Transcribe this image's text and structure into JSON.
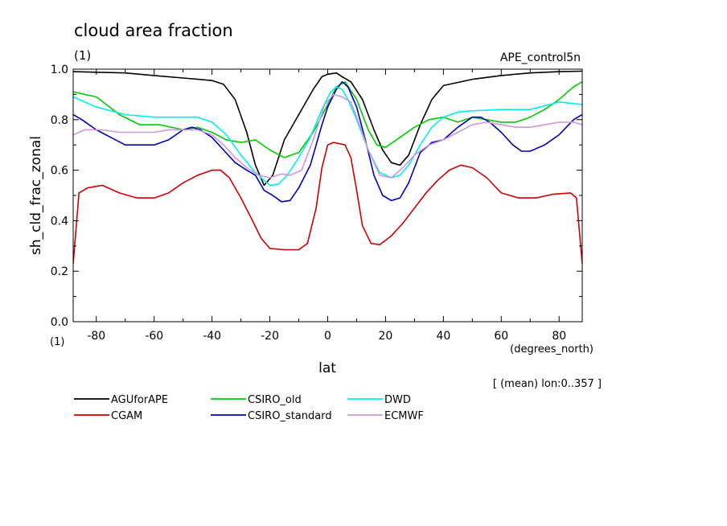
{
  "chart_data": {
    "type": "line",
    "title": "cloud area fraction",
    "subtitle": "(1)",
    "experiment": "APE_control5n",
    "xlabel": "lat",
    "xunits": "(degrees_north)",
    "ylabel": "sh_cld_frac_zonal",
    "yunits": "(1)",
    "note": "[ (mean) lon:0..357 ]",
    "xlim": [
      -88,
      88
    ],
    "ylim": [
      0,
      1
    ],
    "xticks": [
      -80,
      -60,
      -40,
      -20,
      0,
      20,
      40,
      60,
      80
    ],
    "yticks": [
      0,
      0.2,
      0.4,
      0.6,
      0.8,
      1
    ],
    "yticklabels": [
      "0.0",
      "0.2",
      "0.4",
      "0.6",
      "0.8",
      "1.0"
    ],
    "series": [
      {
        "name": "AGUforAPE",
        "color": "#000000",
        "x": [
          -88,
          -80,
          -70,
          -60,
          -50,
          -40,
          -36,
          -32,
          -28,
          -25,
          -22,
          -19,
          -15,
          -10,
          -5,
          -2,
          0,
          3,
          5,
          8,
          12,
          16,
          19,
          22,
          25,
          28,
          32,
          36,
          40,
          50,
          60,
          70,
          80,
          88
        ],
        "y": [
          0.99,
          0.988,
          0.985,
          0.975,
          0.965,
          0.955,
          0.94,
          0.88,
          0.75,
          0.62,
          0.54,
          0.58,
          0.72,
          0.82,
          0.92,
          0.97,
          0.98,
          0.985,
          0.97,
          0.95,
          0.88,
          0.76,
          0.68,
          0.63,
          0.62,
          0.66,
          0.78,
          0.88,
          0.935,
          0.96,
          0.975,
          0.985,
          0.99,
          0.992
        ]
      },
      {
        "name": "CGAM",
        "color": "#cc0000",
        "x": [
          -88,
          -86,
          -83,
          -78,
          -72,
          -66,
          -60,
          -55,
          -50,
          -45,
          -40,
          -37,
          -34,
          -30,
          -26,
          -23,
          -20,
          -15,
          -10,
          -7,
          -4,
          -2,
          0,
          2,
          4,
          6,
          8,
          10,
          12,
          15,
          18,
          22,
          26,
          30,
          34,
          38,
          42,
          46,
          50,
          55,
          60,
          66,
          72,
          78,
          84,
          86,
          88
        ],
        "y": [
          0.23,
          0.51,
          0.53,
          0.54,
          0.51,
          0.49,
          0.49,
          0.51,
          0.55,
          0.58,
          0.6,
          0.6,
          0.57,
          0.49,
          0.4,
          0.33,
          0.29,
          0.285,
          0.285,
          0.31,
          0.45,
          0.61,
          0.7,
          0.71,
          0.705,
          0.7,
          0.65,
          0.52,
          0.38,
          0.31,
          0.305,
          0.34,
          0.39,
          0.45,
          0.51,
          0.56,
          0.6,
          0.62,
          0.61,
          0.57,
          0.51,
          0.49,
          0.49,
          0.505,
          0.51,
          0.49,
          0.23
        ]
      },
      {
        "name": "CSIRO_old",
        "color": "#00cc00",
        "x": [
          -88,
          -80,
          -72,
          -65,
          -58,
          -50,
          -45,
          -40,
          -35,
          -30,
          -25,
          -20,
          -15,
          -10,
          -5,
          0,
          3,
          6,
          10,
          14,
          17,
          20,
          25,
          30,
          35,
          40,
          45,
          50,
          55,
          60,
          65,
          70,
          75,
          80,
          85,
          88
        ],
        "y": [
          0.91,
          0.89,
          0.82,
          0.78,
          0.78,
          0.76,
          0.77,
          0.75,
          0.72,
          0.71,
          0.72,
          0.68,
          0.65,
          0.67,
          0.75,
          0.86,
          0.93,
          0.95,
          0.88,
          0.76,
          0.7,
          0.69,
          0.73,
          0.77,
          0.8,
          0.81,
          0.79,
          0.81,
          0.8,
          0.79,
          0.79,
          0.81,
          0.84,
          0.88,
          0.93,
          0.95
        ]
      },
      {
        "name": "CSIRO_standard",
        "color": "#0000bb",
        "x": [
          -88,
          -85,
          -80,
          -75,
          -70,
          -65,
          -60,
          -55,
          -50,
          -47,
          -44,
          -40,
          -36,
          -32,
          -28,
          -25,
          -22,
          -19,
          -16,
          -13,
          -10,
          -6,
          -2,
          0,
          3,
          5,
          7,
          10,
          13,
          16,
          19,
          22,
          25,
          28,
          32,
          36,
          40,
          45,
          50,
          53,
          56,
          60,
          64,
          67,
          70,
          75,
          80,
          85,
          88
        ],
        "y": [
          0.82,
          0.8,
          0.76,
          0.73,
          0.7,
          0.7,
          0.7,
          0.72,
          0.76,
          0.77,
          0.76,
          0.73,
          0.68,
          0.63,
          0.6,
          0.58,
          0.52,
          0.5,
          0.475,
          0.48,
          0.53,
          0.62,
          0.78,
          0.85,
          0.92,
          0.95,
          0.93,
          0.85,
          0.72,
          0.58,
          0.5,
          0.48,
          0.49,
          0.55,
          0.67,
          0.71,
          0.72,
          0.77,
          0.81,
          0.81,
          0.79,
          0.75,
          0.7,
          0.675,
          0.675,
          0.7,
          0.74,
          0.8,
          0.82
        ]
      },
      {
        "name": "DWD",
        "color": "#00eeee",
        "x": [
          -88,
          -80,
          -70,
          -60,
          -50,
          -45,
          -40,
          -35,
          -30,
          -25,
          -20,
          -17,
          -14,
          -10,
          -6,
          -2,
          1,
          3,
          5,
          7,
          10,
          14,
          18,
          22,
          25,
          28,
          32,
          36,
          40,
          45,
          50,
          60,
          70,
          80,
          88
        ],
        "y": [
          0.89,
          0.85,
          0.82,
          0.81,
          0.81,
          0.81,
          0.79,
          0.74,
          0.66,
          0.59,
          0.54,
          0.545,
          0.58,
          0.65,
          0.73,
          0.84,
          0.91,
          0.93,
          0.92,
          0.88,
          0.8,
          0.68,
          0.59,
          0.57,
          0.58,
          0.62,
          0.7,
          0.77,
          0.81,
          0.83,
          0.835,
          0.84,
          0.84,
          0.87,
          0.86
        ]
      },
      {
        "name": "ECMWF",
        "color": "#cc99dd",
        "x": [
          -88,
          -84,
          -78,
          -72,
          -65,
          -60,
          -55,
          -50,
          -45,
          -40,
          -36,
          -32,
          -28,
          -24,
          -20,
          -16,
          -13,
          -9,
          -5,
          -1,
          2,
          5,
          8,
          11,
          14,
          18,
          22,
          26,
          30,
          35,
          40,
          45,
          50,
          55,
          60,
          65,
          70,
          75,
          80,
          85,
          88
        ],
        "y": [
          0.74,
          0.76,
          0.76,
          0.75,
          0.75,
          0.75,
          0.76,
          0.76,
          0.76,
          0.74,
          0.7,
          0.65,
          0.61,
          0.58,
          0.57,
          0.585,
          0.58,
          0.6,
          0.72,
          0.86,
          0.9,
          0.89,
          0.87,
          0.78,
          0.68,
          0.58,
          0.57,
          0.61,
          0.66,
          0.7,
          0.72,
          0.75,
          0.78,
          0.79,
          0.78,
          0.77,
          0.77,
          0.78,
          0.79,
          0.79,
          0.78
        ]
      }
    ]
  }
}
